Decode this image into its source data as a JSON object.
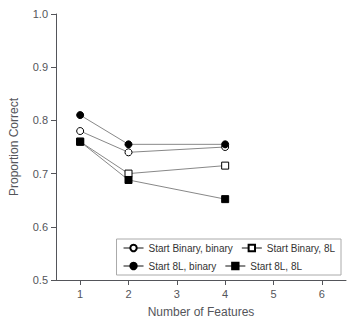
{
  "chart_data": {
    "type": "line",
    "xlabel": "Number of Features",
    "ylabel": "Proportion Correct",
    "x": [
      1,
      2,
      4
    ],
    "series": [
      {
        "name": "Start Binary, binary",
        "values": [
          0.78,
          0.74,
          0.75
        ],
        "marker": "open_circle"
      },
      {
        "name": "Start Binary, 8L",
        "values": [
          0.76,
          0.7,
          0.715
        ],
        "marker": "open_square"
      },
      {
        "name": "Start 8L, binary",
        "values": [
          0.81,
          0.755,
          0.755
        ],
        "marker": "filled_circle"
      },
      {
        "name": "Start 8L, 8L",
        "values": [
          0.76,
          0.688,
          0.652
        ],
        "marker": "filled_square"
      }
    ],
    "color": "#888888",
    "xlim": [
      0.5,
      6.5
    ],
    "ylim": [
      0.5,
      1.0
    ],
    "xticks": [
      1,
      2,
      3,
      4,
      5,
      6
    ],
    "yticks": [
      0.5,
      0.6,
      0.7,
      0.8,
      0.9,
      {
        "value": 1.0,
        "label": "1.0"
      }
    ],
    "grid": false,
    "legend": "lower right"
  }
}
